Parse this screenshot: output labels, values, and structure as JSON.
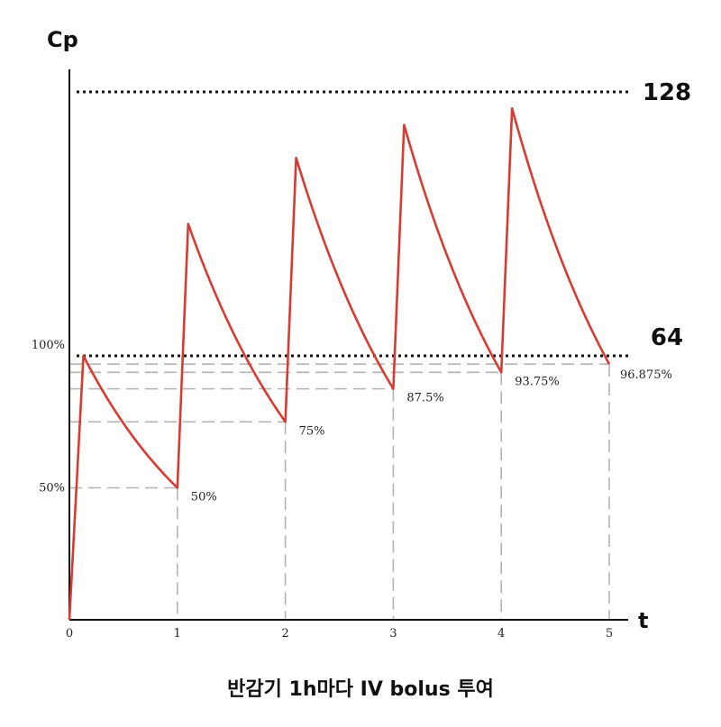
{
  "chart_data": {
    "type": "line",
    "caption": "반감기 1h마다 IV bolus 투여",
    "ylabel": "Cp",
    "xlabel": "t",
    "x_ticks": [
      "0",
      "1",
      "2",
      "3",
      "4",
      "5"
    ],
    "y_ticks_left": [
      "50%",
      "100%"
    ],
    "reference_lines": [
      {
        "label": "128",
        "value": 128
      },
      {
        "label": "64",
        "value": 64
      }
    ],
    "series": [
      {
        "color": "#d93a32",
        "x": [
          0,
          0.13,
          1,
          1.1,
          2,
          2.1,
          3,
          3.1,
          4,
          4.1,
          5
        ],
        "y": [
          0,
          64,
          32,
          96,
          48,
          112,
          56,
          120,
          60,
          124,
          62
        ]
      }
    ],
    "troughs": [
      {
        "x": 1,
        "y": 32,
        "label": "50%"
      },
      {
        "x": 2,
        "y": 48,
        "label": "75%"
      },
      {
        "x": 3,
        "y": 56,
        "label": "87.5%"
      },
      {
        "x": 4,
        "y": 60,
        "label": "93.75%"
      },
      {
        "x": 5,
        "y": 62,
        "label": "96.875%"
      }
    ],
    "xlim": [
      0,
      5
    ],
    "ylim": [
      0,
      132
    ]
  },
  "colors": {
    "curve": "#d93a32",
    "guide": "#b3b3b3",
    "reference": "#111111",
    "axis": "#111111"
  }
}
